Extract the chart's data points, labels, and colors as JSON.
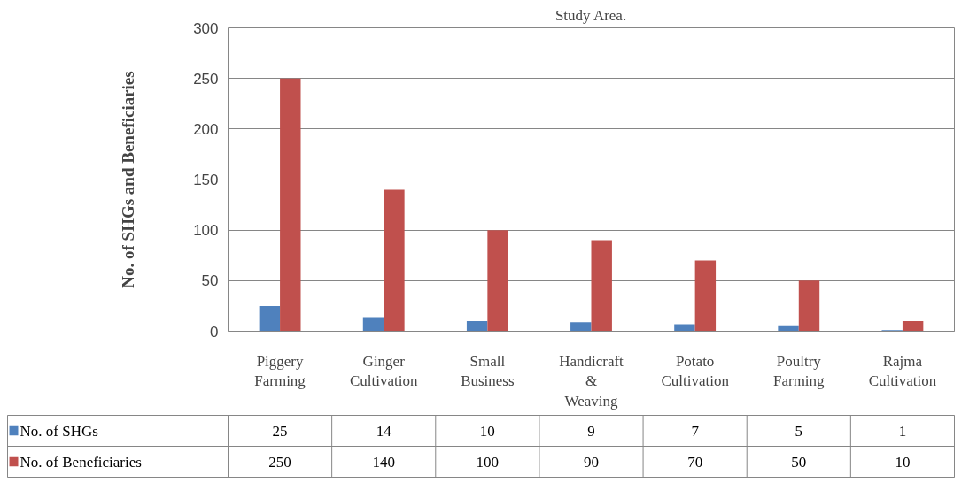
{
  "chart_data": {
    "type": "bar",
    "title": "Study Area.",
    "ylabel": "No. of SHGs and Beneficiaries",
    "categories": [
      "Piggery Farming",
      "Ginger Cultivation",
      "Small Business",
      "Handicraft & Weaving",
      "Potato Cultivation",
      "Poultry Farming",
      "Rajma Cultivation"
    ],
    "series": [
      {
        "name": "No. of SHGs",
        "color": "#4f81bd",
        "values": [
          25,
          14,
          10,
          9,
          7,
          5,
          1
        ]
      },
      {
        "name": "No. of Beneficiaries",
        "color": "#c0504d",
        "values": [
          250,
          140,
          100,
          90,
          70,
          50,
          10
        ]
      }
    ],
    "ylim": [
      0,
      300
    ],
    "yticks": [
      0,
      50,
      100,
      150,
      200,
      250,
      300
    ],
    "grid": "y",
    "legend": "bottom",
    "data_labels": true
  }
}
